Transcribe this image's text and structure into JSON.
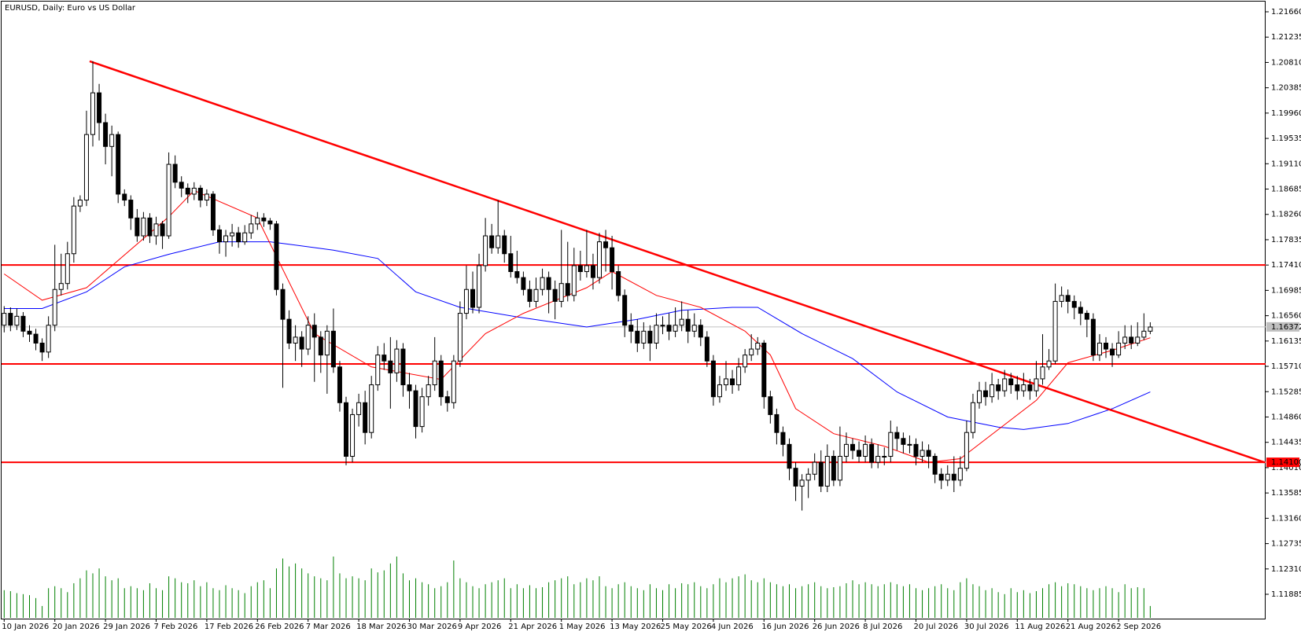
{
  "chart_data": {
    "type": "candlestick",
    "title": "EURUSD, Daily:  Euro vs US Dollar",
    "ylim": [
      1.11885,
      1.2166
    ],
    "yticks": [
      {
        "value": 1.2166,
        "label": "1.21660"
      },
      1.21235,
      {
        "value": 1.2081,
        "label": "1.20810"
      },
      1.20385,
      {
        "value": 1.1996,
        "label": "1.19960"
      },
      1.19535,
      {
        "value": 1.1911,
        "label": "1.19110"
      },
      1.18685,
      {
        "value": 1.1826,
        "label": "1.18260"
      },
      1.17835,
      {
        "value": 1.1741,
        "label": "1.17410"
      },
      1.16985,
      {
        "value": 1.1656,
        "label": "1.16560"
      },
      1.16135,
      {
        "value": 1.1571,
        "label": "1.15710"
      },
      1.15285,
      {
        "value": 1.1486,
        "label": "1.14860"
      },
      1.14435,
      {
        "value": 1.1401,
        "label": "1.14010"
      },
      1.13585,
      {
        "value": 1.1316,
        "label": "1.13160"
      },
      1.12735,
      {
        "value": 1.1231,
        "label": "1.12310"
      },
      1.11885
    ],
    "xticks": [
      {
        "value": 0,
        "label": "10 Jan 2026"
      },
      {
        "value": 8,
        "label": "20 Jan 2026"
      },
      {
        "value": 16,
        "label": "29 Jan 2026"
      },
      {
        "value": 24,
        "label": "7 Feb 2026"
      },
      {
        "value": 32,
        "label": "17 Feb 2026"
      },
      {
        "value": 40,
        "label": "26 Feb 2026"
      },
      {
        "value": 48,
        "label": "7 Mar 2026"
      },
      {
        "value": 56,
        "label": "18 Mar 2026"
      },
      {
        "value": 64,
        "label": "30 Mar 2026"
      },
      {
        "value": 72,
        "label": "9 Apr 2026"
      },
      {
        "value": 80,
        "label": "21 Apr 2026"
      },
      {
        "value": 88,
        "label": "1 May 2026"
      },
      {
        "value": 96,
        "label": "13 May 2026"
      },
      {
        "value": 104,
        "label": "25 May 2026"
      },
      {
        "value": 112,
        "label": "4 Jun 2026"
      },
      {
        "value": 120,
        "label": "16 Jun 2026"
      },
      {
        "value": 128,
        "label": "26 Jun 2026"
      },
      {
        "value": 136,
        "label": "8 Jul 2026"
      },
      {
        "value": 144,
        "label": "20 Jul 2026"
      },
      {
        "value": 152,
        "label": "30 Jul 2026"
      },
      {
        "value": 160,
        "label": "11 Aug 2026"
      },
      {
        "value": 168,
        "label": "21 Aug 2026"
      },
      {
        "value": 176,
        "label": "2 Sep 2026"
      }
    ],
    "open": [
      1.164,
      1.166,
      1.164,
      1.1655,
      1.163,
      1.1625,
      1.161,
      1.1595,
      1.164,
      1.17,
      1.171,
      1.176,
      1.184,
      1.185,
      1.196,
      1.203,
      1.198,
      1.194,
      1.196,
      1.186,
      1.185,
      1.182,
      1.179,
      1.182,
      1.179,
      1.181,
      1.179,
      1.191,
      1.188,
      1.187,
      1.186,
      1.187,
      1.185,
      1.186,
      1.18,
      1.178,
      1.179,
      1.1795,
      1.178,
      1.1795,
      1.181,
      1.182,
      1.1815,
      1.181,
      1.17,
      1.165,
      1.161,
      1.162,
      1.16,
      1.164,
      1.162,
      1.159,
      1.163,
      1.157,
      1.151,
      1.142,
      1.149,
      1.151,
      1.146,
      1.154,
      1.159,
      1.158,
      1.156,
      1.16,
      1.154,
      1.153,
      1.147,
      1.152,
      1.154,
      1.158,
      1.152,
      1.151,
      1.158,
      1.166,
      1.17,
      1.167,
      1.174,
      1.179,
      1.177,
      1.179,
      1.176,
      1.173,
      1.172,
      1.17,
      1.168,
      1.17,
      1.172,
      1.17,
      1.168,
      1.171,
      1.169,
      1.174,
      1.173,
      1.174,
      1.172,
      1.178,
      1.177,
      1.173,
      1.169,
      1.164,
      1.163,
      1.161,
      1.163,
      1.161,
      1.164,
      1.164,
      1.163,
      1.164,
      1.165,
      1.163,
      1.164,
      1.162,
      1.158,
      1.152,
      1.154,
      1.155,
      1.154,
      1.157,
      1.159,
      1.16,
      1.161,
      1.152,
      1.149,
      1.146,
      1.144,
      1.14,
      1.137,
      1.138,
      1.139,
      1.141,
      1.137,
      1.142,
      1.138,
      1.142,
      1.144,
      1.143,
      1.142,
      1.144,
      1.141,
      1.142,
      1.142,
      1.146,
      1.145,
      1.144,
      1.144,
      1.142,
      1.143,
      1.142,
      1.139,
      1.138,
      1.139,
      1.138,
      1.14,
      1.146,
      1.151,
      1.153,
      1.152,
      1.154,
      1.153,
      1.155,
      1.154,
      1.153,
      1.154,
      1.153,
      1.155,
      1.157,
      1.158,
      1.168,
      1.169,
      1.168,
      1.167,
      1.166,
      1.165,
      1.159,
      1.161,
      1.16,
      1.159,
      1.161,
      1.162,
      1.161,
      1.162,
      1.163
    ],
    "high": [
      1.1672,
      1.167,
      1.1668,
      1.1662,
      1.164,
      1.1634,
      1.1618,
      1.1655,
      1.1775,
      1.176,
      1.178,
      1.1855,
      1.1858,
      1.2,
      1.2083,
      1.2045,
      1.1995,
      1.1975,
      1.1965,
      1.1868,
      1.1858,
      1.1835,
      1.183,
      1.1828,
      1.1822,
      1.1815,
      1.193,
      1.1925,
      1.189,
      1.1878,
      1.188,
      1.1875,
      1.1868,
      1.1865,
      1.1808,
      1.18,
      1.181,
      1.1805,
      1.1808,
      1.1825,
      1.183,
      1.1828,
      1.182,
      1.1815,
      1.171,
      1.1665,
      1.164,
      1.163,
      1.1655,
      1.166,
      1.163,
      1.164,
      1.1668,
      1.158,
      1.152,
      1.15,
      1.1525,
      1.153,
      1.1555,
      1.1605,
      1.161,
      1.162,
      1.1615,
      1.161,
      1.156,
      1.154,
      1.1535,
      1.1555,
      1.162,
      1.159,
      1.153,
      1.159,
      1.168,
      1.174,
      1.173,
      1.176,
      1.182,
      1.181,
      1.185,
      1.18,
      1.179,
      1.1765,
      1.173,
      1.1715,
      1.172,
      1.1735,
      1.173,
      1.1715,
      1.18,
      1.178,
      1.177,
      1.1765,
      1.18,
      1.176,
      1.1795,
      1.18,
      1.179,
      1.174,
      1.17,
      1.166,
      1.165,
      1.1645,
      1.164,
      1.166,
      1.1655,
      1.166,
      1.167,
      1.168,
      1.1665,
      1.166,
      1.165,
      1.163,
      1.159,
      1.1555,
      1.158,
      1.1565,
      1.1585,
      1.16,
      1.1625,
      1.162,
      1.1615,
      1.153,
      1.15,
      1.147,
      1.145,
      1.141,
      1.139,
      1.14,
      1.1425,
      1.143,
      1.144,
      1.143,
      1.147,
      1.146,
      1.145,
      1.1445,
      1.1455,
      1.145,
      1.144,
      1.1435,
      1.148,
      1.147,
      1.146,
      1.1455,
      1.145,
      1.1445,
      1.144,
      1.1425,
      1.14,
      1.1405,
      1.142,
      1.142,
      1.148,
      1.1525,
      1.1545,
      1.1545,
      1.156,
      1.155,
      1.1565,
      1.156,
      1.1555,
      1.156,
      1.155,
      1.158,
      1.1625,
      1.16,
      1.171,
      1.1705,
      1.17,
      1.169,
      1.168,
      1.1665,
      1.166,
      1.1625,
      1.162,
      1.161,
      1.163,
      1.164,
      1.164,
      1.1645,
      1.166,
      1.1645
    ],
    "low": [
      1.1628,
      1.163,
      1.1632,
      1.162,
      1.1612,
      1.1598,
      1.158,
      1.1585,
      1.163,
      1.169,
      1.17,
      1.1745,
      1.183,
      1.184,
      1.194,
      1.195,
      1.191,
      1.189,
      1.1845,
      1.184,
      1.18,
      1.178,
      1.1782,
      1.1778,
      1.1775,
      1.1768,
      1.1785,
      1.187,
      1.1855,
      1.1845,
      1.185,
      1.1838,
      1.184,
      1.179,
      1.176,
      1.1755,
      1.1772,
      1.177,
      1.1775,
      1.1785,
      1.18,
      1.1805,
      1.18,
      1.169,
      1.1535,
      1.16,
      1.158,
      1.157,
      1.159,
      1.1545,
      1.156,
      1.1525,
      1.156,
      1.1495,
      1.1405,
      1.141,
      1.147,
      1.144,
      1.145,
      1.153,
      1.1565,
      1.15,
      1.1545,
      1.152,
      1.15,
      1.145,
      1.146,
      1.1505,
      1.153,
      1.1505,
      1.1495,
      1.15,
      1.157,
      1.165,
      1.166,
      1.166,
      1.173,
      1.176,
      1.176,
      1.1745,
      1.172,
      1.171,
      1.169,
      1.167,
      1.167,
      1.169,
      1.166,
      1.165,
      1.167,
      1.168,
      1.168,
      1.1715,
      1.172,
      1.17,
      1.171,
      1.173,
      1.17,
      1.168,
      1.162,
      1.161,
      1.1595,
      1.16,
      1.158,
      1.16,
      1.1625,
      1.1615,
      1.162,
      1.163,
      1.161,
      1.162,
      1.1605,
      1.157,
      1.1505,
      1.151,
      1.153,
      1.1525,
      1.153,
      1.156,
      1.158,
      1.159,
      1.15,
      1.1475,
      1.144,
      1.142,
      1.138,
      1.1345,
      1.1329,
      1.135,
      1.138,
      1.136,
      1.136,
      1.137,
      1.137,
      1.141,
      1.1415,
      1.141,
      1.141,
      1.14,
      1.14,
      1.1405,
      1.141,
      1.143,
      1.1425,
      1.1425,
      1.1405,
      1.141,
      1.14,
      1.1375,
      1.1365,
      1.137,
      1.136,
      1.137,
      1.1395,
      1.145,
      1.15,
      1.1505,
      1.151,
      1.1515,
      1.152,
      1.1525,
      1.1515,
      1.152,
      1.1515,
      1.152,
      1.154,
      1.1565,
      1.1575,
      1.167,
      1.166,
      1.165,
      1.164,
      1.162,
      1.158,
      1.158,
      1.1585,
      1.157,
      1.1585,
      1.16,
      1.16,
      1.1605,
      1.1615,
      1.1625
    ],
    "close": [
      1.166,
      1.164,
      1.1655,
      1.163,
      1.1625,
      1.161,
      1.1595,
      1.164,
      1.17,
      1.171,
      1.176,
      1.184,
      1.185,
      1.196,
      1.203,
      1.198,
      1.194,
      1.196,
      1.186,
      1.185,
      1.182,
      1.179,
      1.182,
      1.179,
      1.181,
      1.179,
      1.191,
      1.188,
      1.187,
      1.186,
      1.187,
      1.185,
      1.186,
      1.18,
      1.178,
      1.179,
      1.1795,
      1.178,
      1.1795,
      1.181,
      1.182,
      1.1815,
      1.181,
      1.17,
      1.165,
      1.161,
      1.162,
      1.16,
      1.164,
      1.162,
      1.159,
      1.163,
      1.157,
      1.151,
      1.142,
      1.149,
      1.151,
      1.146,
      1.154,
      1.159,
      1.158,
      1.156,
      1.16,
      1.154,
      1.153,
      1.147,
      1.152,
      1.154,
      1.158,
      1.152,
      1.151,
      1.158,
      1.166,
      1.17,
      1.167,
      1.174,
      1.179,
      1.177,
      1.179,
      1.176,
      1.173,
      1.172,
      1.17,
      1.168,
      1.17,
      1.172,
      1.17,
      1.168,
      1.171,
      1.169,
      1.174,
      1.173,
      1.174,
      1.172,
      1.178,
      1.177,
      1.173,
      1.169,
      1.164,
      1.163,
      1.161,
      1.163,
      1.161,
      1.164,
      1.164,
      1.163,
      1.164,
      1.165,
      1.163,
      1.164,
      1.162,
      1.158,
      1.152,
      1.154,
      1.155,
      1.154,
      1.157,
      1.159,
      1.16,
      1.161,
      1.152,
      1.149,
      1.146,
      1.144,
      1.14,
      1.137,
      1.138,
      1.139,
      1.141,
      1.137,
      1.142,
      1.138,
      1.142,
      1.144,
      1.143,
      1.142,
      1.144,
      1.141,
      1.142,
      1.142,
      1.146,
      1.145,
      1.144,
      1.144,
      1.142,
      1.143,
      1.142,
      1.139,
      1.138,
      1.139,
      1.138,
      1.14,
      1.146,
      1.151,
      1.153,
      1.152,
      1.154,
      1.153,
      1.155,
      1.154,
      1.153,
      1.154,
      1.153,
      1.155,
      1.157,
      1.158,
      1.168,
      1.169,
      1.168,
      1.167,
      1.166,
      1.165,
      1.159,
      1.161,
      1.16,
      1.159,
      1.161,
      1.162,
      1.161,
      1.162,
      1.163,
      1.1637
    ],
    "volume": [
      28,
      27,
      25,
      24,
      23,
      20,
      12,
      30,
      32,
      30,
      26,
      35,
      40,
      48,
      45,
      50,
      42,
      38,
      40,
      30,
      32,
      30,
      28,
      35,
      30,
      28,
      42,
      40,
      36,
      35,
      38,
      32,
      36,
      30,
      28,
      33,
      30,
      28,
      25,
      32,
      36,
      38,
      30,
      50,
      60,
      52,
      55,
      50,
      45,
      42,
      40,
      38,
      62,
      45,
      40,
      42,
      40,
      38,
      50,
      46,
      48,
      55,
      62,
      45,
      38,
      40,
      36,
      34,
      30,
      32,
      36,
      58,
      40,
      36,
      32,
      30,
      34,
      36,
      38,
      40,
      30,
      34,
      30,
      33,
      30,
      31,
      36,
      38,
      40,
      42,
      34,
      36,
      40,
      38,
      42,
      32,
      30,
      34,
      36,
      32,
      30,
      28,
      34,
      30,
      28,
      34,
      30,
      35,
      34,
      36,
      32,
      30,
      34,
      40,
      36,
      40,
      42,
      44,
      38,
      36,
      40,
      36,
      34,
      32,
      34,
      30,
      32,
      34,
      36,
      32,
      30,
      31,
      32,
      35,
      38,
      34,
      36,
      34,
      32,
      34,
      36,
      34,
      32,
      34,
      30,
      28,
      30,
      32,
      34,
      30,
      28,
      36,
      40,
      34,
      32,
      28,
      30,
      26,
      24,
      30,
      26,
      28,
      25,
      27,
      30,
      34,
      36,
      32,
      35,
      34,
      32,
      30,
      28,
      30,
      32,
      30,
      26,
      34,
      30,
      31,
      30,
      12
    ],
    "bull_color": "#ffffff",
    "bear_color": "#000000",
    "volume_color": "#008000",
    "ma_fast": {
      "color": "#ff0000",
      "x": [
        0,
        6,
        13,
        26,
        30,
        40,
        49,
        58,
        69,
        76,
        82,
        92,
        96,
        103,
        110,
        117,
        121,
        125,
        131,
        139,
        146,
        151,
        157,
        163,
        168,
        175,
        181
      ],
      "values": [
        1.1726,
        1.1682,
        1.1703,
        1.1822,
        1.1866,
        1.182,
        1.1626,
        1.157,
        1.1549,
        1.1626,
        1.166,
        1.1703,
        1.173,
        1.169,
        1.167,
        1.163,
        1.159,
        1.15,
        1.1458,
        1.1437,
        1.141,
        1.1416,
        1.1465,
        1.1514,
        1.1577,
        1.1598,
        1.1619
      ]
    },
    "ma_slow": {
      "color": "#0000ff",
      "x": [
        0,
        6,
        13,
        19,
        26,
        34,
        42,
        52,
        59,
        65,
        72,
        81,
        92,
        100,
        107,
        115,
        119,
        126,
        134,
        141,
        149,
        157,
        161,
        168,
        175,
        181
      ],
      "values": [
        1.1668,
        1.1668,
        1.1696,
        1.1738,
        1.1759,
        1.178,
        1.178,
        1.1766,
        1.1752,
        1.1696,
        1.167,
        1.1654,
        1.1637,
        1.165,
        1.1665,
        1.167,
        1.167,
        1.1626,
        1.1584,
        1.1528,
        1.1486,
        1.1469,
        1.1465,
        1.1475,
        1.15,
        1.1528
      ]
    },
    "hlines": [
      1.1741,
      1.1575,
      1.141
    ],
    "hline_color": "#ff0000",
    "trendline": {
      "x": [
        13.5,
        199
      ],
      "values": [
        1.2083,
        1.141
      ]
    },
    "level_label": {
      "value": 1.141,
      "label": "1.14100"
    },
    "last_price": {
      "value": 1.16372,
      "label": "1.16372"
    }
  }
}
